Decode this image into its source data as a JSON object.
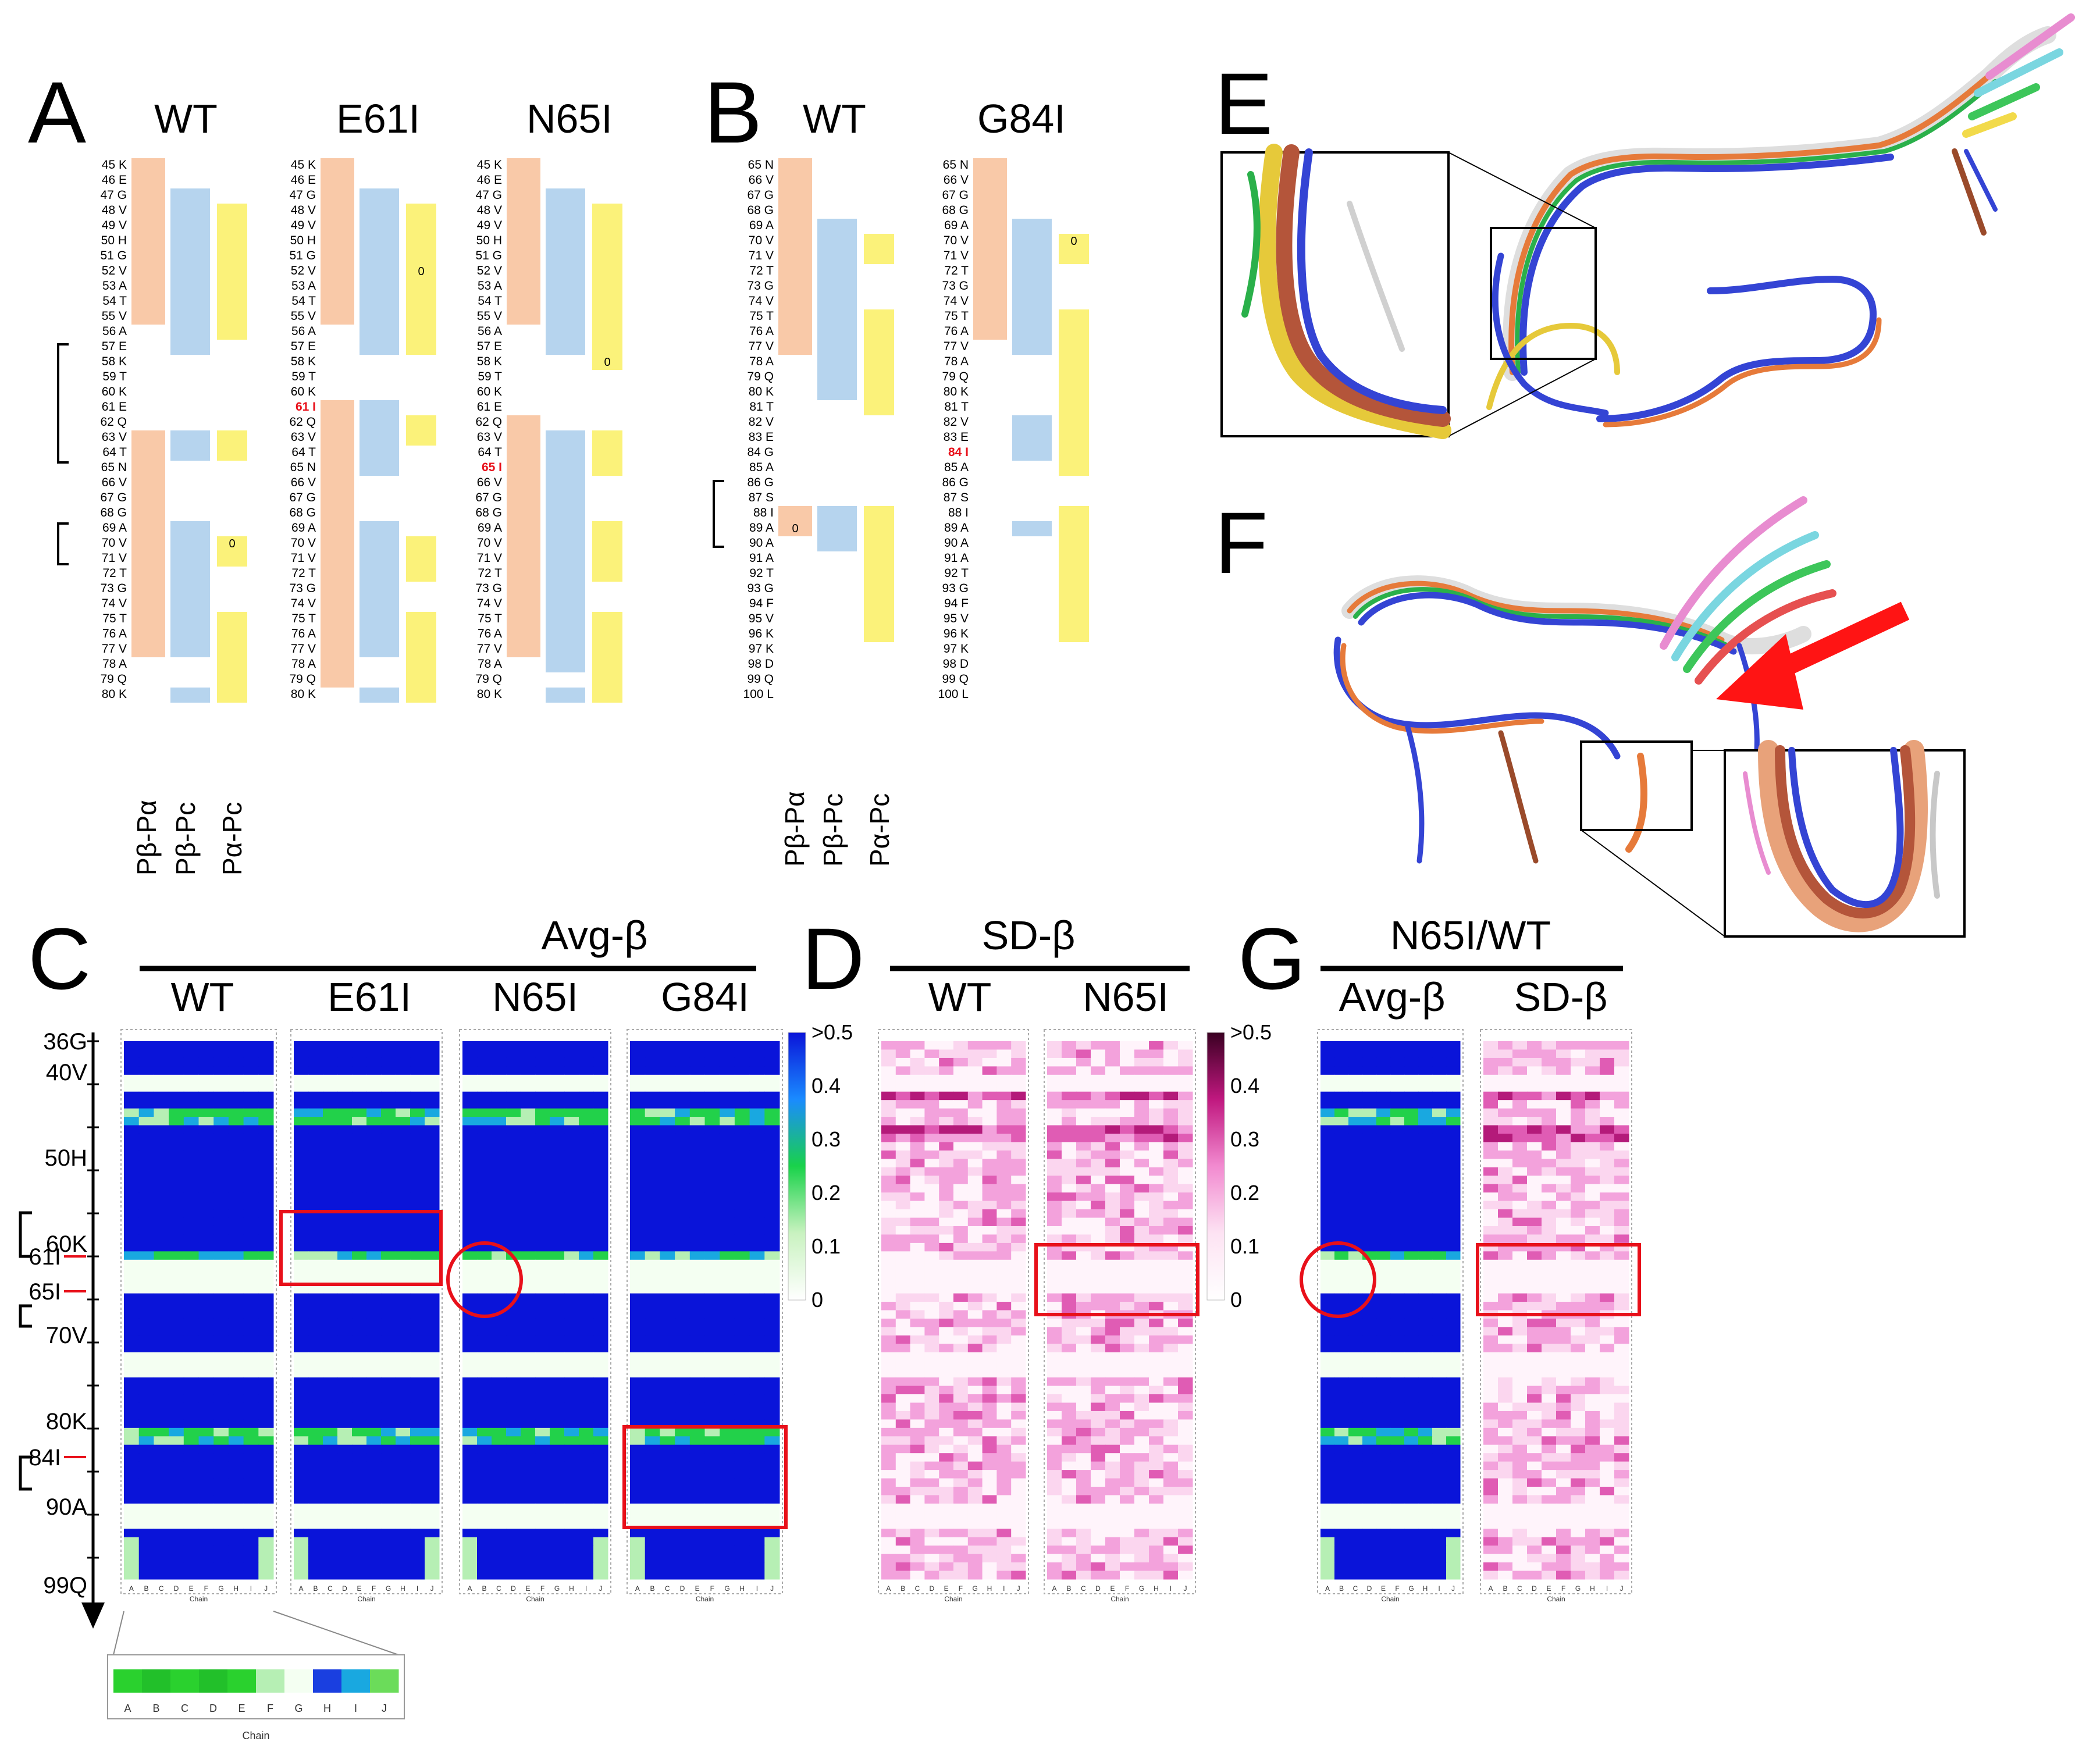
{
  "panels": {
    "A": {
      "label": "A",
      "cols": [
        "WT",
        "E61I",
        "N65I"
      ]
    },
    "B": {
      "label": "B",
      "cols": [
        "WT",
        "G84I"
      ]
    },
    "C": {
      "label": "C",
      "title": "Avg-β",
      "cols": [
        "WT",
        "E61I",
        "N65I",
        "G84I"
      ]
    },
    "D": {
      "label": "D",
      "title": "SD-β",
      "cols": [
        "WT",
        "N65I"
      ]
    },
    "E": {
      "label": "E"
    },
    "F": {
      "label": "F"
    },
    "G": {
      "label": "G",
      "title": "N65I/WT",
      "cols": [
        "Avg-β",
        "SD-β"
      ]
    }
  },
  "contact_labels": [
    "Pβ-Pα",
    "Pβ-Pc",
    "Pα-Pc"
  ],
  "zero_mark": "0",
  "residues_A": [
    "45 K",
    "46 E",
    "47 G",
    "48 V",
    "49 V",
    "50 H",
    "51 G",
    "52 V",
    "53 A",
    "54 T",
    "55 V",
    "56 A",
    "57 E",
    "58 K",
    "59 T",
    "60 K",
    "61 E",
    "62 Q",
    "63 V",
    "64 T",
    "65 N",
    "66 V",
    "67 G",
    "68 G",
    "69 A",
    "70 V",
    "71 V",
    "72 T",
    "73 G",
    "74 V",
    "75 T",
    "76 A",
    "77 V",
    "78 A",
    "79 Q",
    "80 K"
  ],
  "residues_B": [
    "65 N",
    "66 V",
    "67 G",
    "68 G",
    "69 A",
    "70 V",
    "71 V",
    "72 T",
    "73 G",
    "74 V",
    "75 T",
    "76 A",
    "77 V",
    "78 A",
    "79 Q",
    "80 K",
    "81 T",
    "82 V",
    "83 E",
    "84 G",
    "85 A",
    "86 G",
    "87 S",
    "88 I",
    "89 A",
    "90 A",
    "91 A",
    "92 T",
    "93 G",
    "94 F",
    "95 V",
    "96 K",
    "97 K",
    "98 D",
    "99 Q",
    "100 L"
  ],
  "mutations": {
    "E61I": "61 I",
    "N65I": "65 I",
    "G84I": "84 I"
  },
  "axis_C": {
    "ticks": [
      "36G",
      "40V",
      "50H",
      "60K",
      "70V",
      "80K",
      "90A",
      "99Q"
    ],
    "red_ticks": [
      "61I",
      "65I",
      "84I"
    ]
  },
  "colorbar_avg": {
    "labels": [
      ">0.5",
      "0.4",
      "0.3",
      "0.2",
      "0.1",
      "0"
    ],
    "colors": [
      "#0a14d9",
      "#1a8bff",
      "#19d24a",
      "#c9f2c0",
      "#ffffff"
    ]
  },
  "colorbar_sd": {
    "labels": [
      ">0.5",
      "0.4",
      "0.3",
      "0.2",
      "0.1",
      "0"
    ],
    "colors": [
      "#3a0022",
      "#c0187f",
      "#f28ad0",
      "#fde3f3",
      "#ffffff"
    ]
  },
  "zoom_strip": {
    "chains": [
      "A",
      "B",
      "C",
      "D",
      "E",
      "F",
      "G",
      "H",
      "I",
      "J"
    ],
    "axis_title": "Chain"
  },
  "heatmap_chain_axis": "Chain",
  "arrow_color": "#ff1414",
  "highlight_color": "#e8101a"
}
